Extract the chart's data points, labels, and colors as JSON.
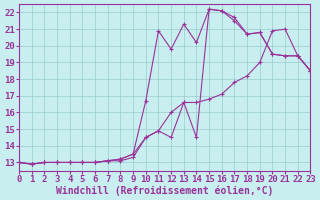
{
  "bg_color": "#c8eef0",
  "line_color": "#993399",
  "grid_color": "#99cccc",
  "xlabel": "Windchill (Refroidissement éolien,°C)",
  "xlabel_fontsize": 7.0,
  "tick_fontsize": 6.5,
  "xmin": 0,
  "xmax": 23,
  "ymin": 12.5,
  "ymax": 22.5,
  "yticks": [
    13,
    14,
    15,
    16,
    17,
    18,
    19,
    20,
    21,
    22
  ],
  "xticks": [
    0,
    1,
    2,
    3,
    4,
    5,
    6,
    7,
    8,
    9,
    10,
    11,
    12,
    13,
    14,
    15,
    16,
    17,
    18,
    19,
    20,
    21,
    22,
    23
  ],
  "line1_x": [
    0,
    1,
    2,
    3,
    4,
    5,
    6,
    7,
    8,
    9,
    10,
    11,
    12,
    13,
    14,
    15,
    16,
    17,
    18,
    19,
    20,
    21,
    22,
    23
  ],
  "line1_y": [
    13.0,
    12.9,
    13.0,
    13.0,
    13.0,
    13.0,
    13.0,
    13.1,
    13.1,
    13.3,
    14.5,
    14.9,
    14.5,
    16.6,
    14.5,
    22.2,
    22.1,
    21.5,
    20.7,
    20.8,
    19.5,
    19.4,
    19.4,
    18.5
  ],
  "line2_x": [
    0,
    1,
    2,
    3,
    4,
    5,
    6,
    7,
    8,
    9,
    10,
    11,
    12,
    13,
    14,
    15,
    16,
    17,
    18,
    19,
    20,
    21,
    22,
    23
  ],
  "line2_y": [
    13.0,
    12.9,
    13.0,
    13.0,
    13.0,
    13.0,
    13.0,
    13.1,
    13.2,
    13.5,
    16.7,
    20.9,
    19.8,
    21.3,
    20.2,
    22.2,
    22.1,
    21.7,
    20.7,
    20.8,
    19.5,
    19.4,
    19.4,
    18.5
  ],
  "line3_x": [
    0,
    1,
    2,
    3,
    4,
    5,
    6,
    7,
    8,
    9,
    10,
    11,
    12,
    13,
    14,
    15,
    16,
    17,
    18,
    19,
    20,
    21,
    22,
    23
  ],
  "line3_y": [
    13.0,
    12.9,
    13.0,
    13.0,
    13.0,
    13.0,
    13.0,
    13.1,
    13.2,
    13.5,
    14.5,
    14.9,
    16.0,
    16.6,
    16.6,
    16.8,
    17.1,
    17.8,
    18.2,
    19.0,
    20.9,
    21.0,
    19.4,
    18.5
  ]
}
